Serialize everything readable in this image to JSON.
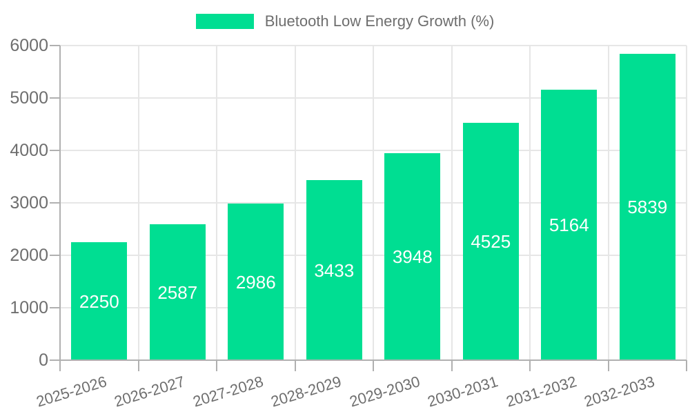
{
  "chart_data": {
    "type": "bar",
    "title": "Bluetooth Low Energy Growth (%)",
    "legend": {
      "position": "top",
      "label": "Bluetooth Low Energy Growth (%)"
    },
    "categories": [
      "2025-2026",
      "2026-2027",
      "2027-2028",
      "2028-2029",
      "2029-2030",
      "2030-2031",
      "2031-2032",
      "2032-2033"
    ],
    "series": [
      {
        "name": "Bluetooth Low Energy Growth (%)",
        "values": [
          2250,
          2587,
          2986,
          3433,
          3948,
          4525,
          5164,
          5839
        ]
      }
    ],
    "data_labels": [
      "2250",
      "2587",
      "2986",
      "3433",
      "3948",
      "4525",
      "5164",
      "5839"
    ],
    "xlabel": "",
    "ylabel": "",
    "ylim": [
      0,
      6000
    ],
    "y_ticks": [
      0,
      1000,
      2000,
      3000,
      4000,
      5000,
      6000
    ],
    "y_tick_labels": [
      "0",
      "1000",
      "2000",
      "3000",
      "4000",
      "5000",
      "6000"
    ],
    "grid": true,
    "colors": {
      "bar": "#00DE92",
      "grid_line": "#e6e6e6",
      "axis_line": "#b0b0b0",
      "axis_text": "#6e6e6e",
      "data_label_text": "#ffffff",
      "background": "#ffffff"
    }
  }
}
